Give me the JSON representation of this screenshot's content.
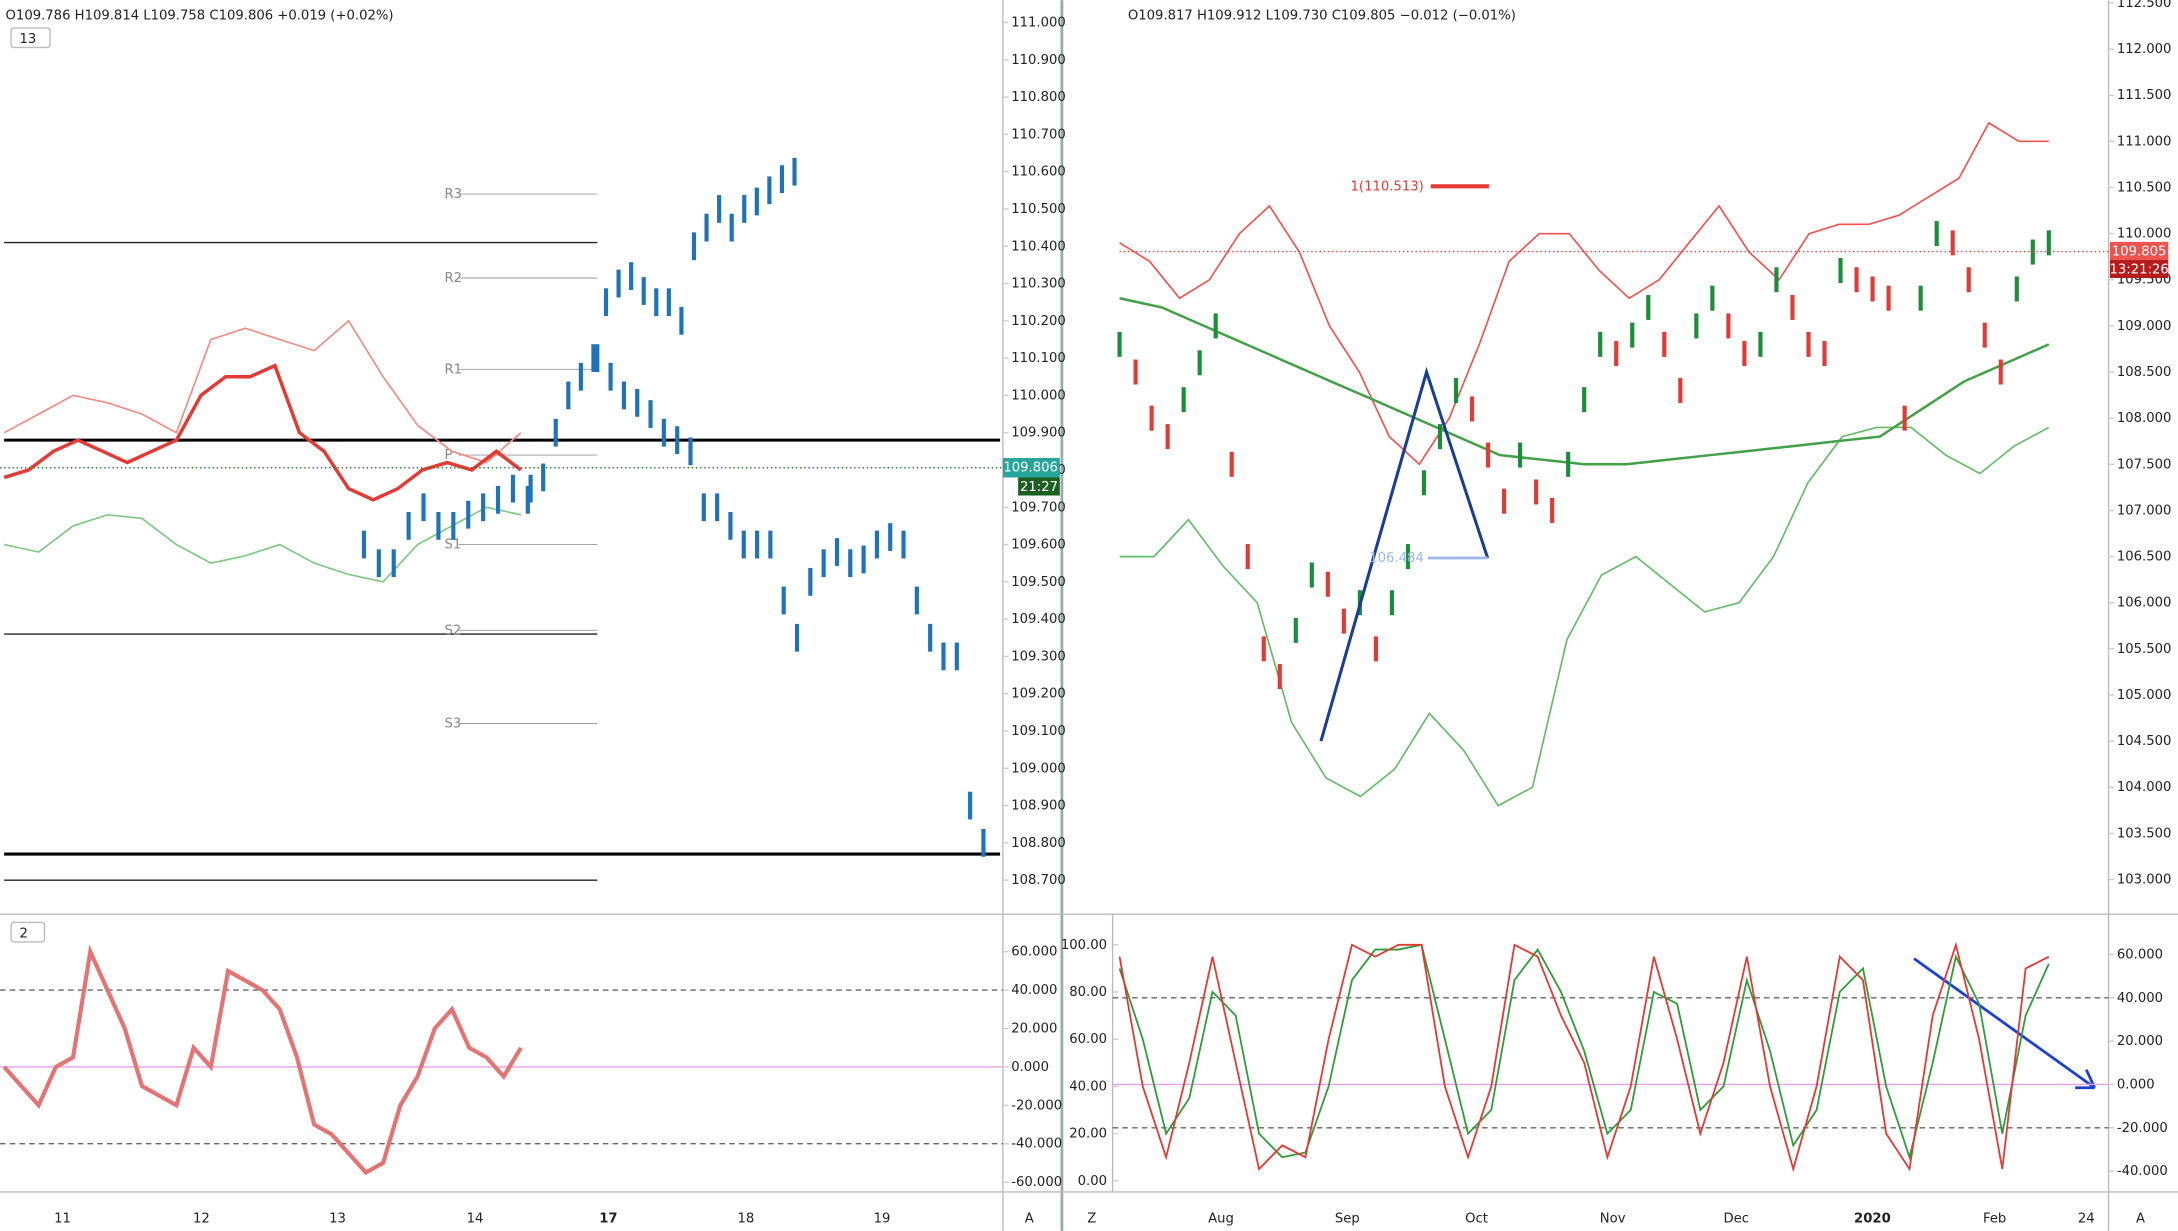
{
  "left_chart": {
    "header": "O109.786 H109.814 L109.758 C109.806 +0.019 (+0.02%)",
    "indicator_count": "13",
    "osc_count": "2",
    "ylim": [
      108.62,
      111.06
    ],
    "yticks": [
      {
        "value": 111.0,
        "label": "111.000"
      },
      {
        "value": 110.9,
        "label": "110.900"
      },
      {
        "value": 110.8,
        "label": "110.800"
      },
      {
        "value": 110.7,
        "label": "110.700"
      },
      {
        "value": 110.6,
        "label": "110.600"
      },
      {
        "value": 110.5,
        "label": "110.500"
      },
      {
        "value": 110.4,
        "label": "110.400"
      },
      {
        "value": 110.3,
        "label": "110.300"
      },
      {
        "value": 110.2,
        "label": "110.200"
      },
      {
        "value": 110.1,
        "label": "110.100"
      },
      {
        "value": 110.0,
        "label": "110.000"
      },
      {
        "value": 109.9,
        "label": "109.900"
      },
      {
        "value": 109.8,
        "label": "109.800"
      },
      {
        "value": 109.7,
        "label": "109.700"
      },
      {
        "value": 109.6,
        "label": "109.600"
      },
      {
        "value": 109.5,
        "label": "109.500"
      },
      {
        "value": 109.4,
        "label": "109.400"
      },
      {
        "value": 109.3,
        "label": "109.300"
      },
      {
        "value": 109.2,
        "label": "109.200"
      },
      {
        "value": 109.1,
        "label": "109.100"
      },
      {
        "value": 109.0,
        "label": "109.000"
      },
      {
        "value": 108.9,
        "label": "108.900"
      },
      {
        "value": 108.8,
        "label": "108.800"
      },
      {
        "value": 108.7,
        "label": "108.700"
      }
    ],
    "last_price": {
      "value": 109.806,
      "label": "109.806"
    },
    "countdown": "21:27",
    "levels": [
      110.41,
      109.36,
      108.7
    ],
    "key_levels": [
      109.88,
      108.77
    ],
    "pivots": [
      {
        "label": "R3",
        "value": 110.54
      },
      {
        "label": "R2",
        "value": 110.315
      },
      {
        "label": "R1",
        "value": 110.07
      },
      {
        "label": "P",
        "value": 109.84
      },
      {
        "label": "S1",
        "value": 109.6
      },
      {
        "label": "S2",
        "value": 109.37
      },
      {
        "label": "S3",
        "value": 109.12
      }
    ],
    "price": [
      109.78,
      109.8,
      109.85,
      109.88,
      109.85,
      109.82,
      109.85,
      109.88,
      110.0,
      110.05,
      110.05,
      110.08,
      109.9,
      109.85,
      109.75,
      109.72,
      109.75,
      109.8,
      109.82,
      109.8,
      109.85,
      109.8
    ],
    "upper_band": [
      109.9,
      109.95,
      110.0,
      109.98,
      109.95,
      109.9,
      110.15,
      110.18,
      110.15,
      110.12,
      110.2,
      110.05,
      109.92,
      109.85,
      109.82,
      109.9
    ],
    "lower_band": [
      109.6,
      109.58,
      109.65,
      109.68,
      109.67,
      109.6,
      109.55,
      109.57,
      109.6,
      109.55,
      109.52,
      109.5,
      109.6,
      109.65,
      109.7,
      109.68
    ],
    "projection_early": [
      109.6,
      109.55,
      109.55,
      109.65,
      109.7,
      109.65,
      109.65,
      109.68,
      109.7,
      109.72,
      109.75,
      109.72
    ],
    "projection_up": [
      109.75,
      109.78,
      109.9,
      110.0,
      110.05,
      110.1,
      110.25,
      110.3,
      110.32,
      110.28,
      110.25,
      110.25,
      110.2,
      110.4,
      110.45,
      110.5,
      110.45,
      110.5,
      110.52,
      110.55,
      110.58,
      110.6
    ],
    "projection_down": [
      110.1,
      110.05,
      110.0,
      109.98,
      109.95,
      109.9,
      109.88,
      109.85,
      109.7,
      109.7,
      109.65,
      109.6,
      109.6,
      109.6,
      109.45,
      109.35,
      109.5,
      109.55,
      109.58,
      109.55,
      109.56,
      109.6,
      109.62,
      109.6,
      109.45,
      109.35,
      109.3,
      109.3,
      108.9,
      108.8
    ],
    "x_labels": [
      "11",
      "12",
      "13",
      "14",
      "17",
      "18",
      "19"
    ],
    "osc": {
      "ylim": [
        -65.1,
        78.1
      ],
      "yticks": [
        {
          "value": 60,
          "label": "60.000"
        },
        {
          "value": 40,
          "label": "40.000"
        },
        {
          "value": 20,
          "label": "20.000"
        },
        {
          "value": 0,
          "label": "0.000"
        },
        {
          "value": -20,
          "label": "-20.000"
        },
        {
          "value": -40,
          "label": "-40.000"
        },
        {
          "value": -60,
          "label": "-60.000"
        }
      ],
      "bands": [
        40,
        0,
        -40
      ],
      "values": [
        0,
        -10,
        -20,
        0,
        5,
        60,
        40,
        20,
        -10,
        -15,
        -20,
        10,
        0,
        50,
        45,
        40,
        30,
        5,
        -30,
        -35,
        -45,
        -55,
        -50,
        -20,
        -5,
        20,
        30,
        10,
        5,
        -5,
        10
      ]
    }
  },
  "right_chart": {
    "header": "O109.817 H109.912 L109.730 C109.805 −0.012 (−0.01%)",
    "ylim": [
      102.67,
      112.53
    ],
    "yticks": [
      {
        "value": 112.5,
        "label": "112.500"
      },
      {
        "value": 112.0,
        "label": "112.000"
      },
      {
        "value": 111.5,
        "label": "111.500"
      },
      {
        "value": 111.0,
        "label": "111.000"
      },
      {
        "value": 110.5,
        "label": "110.500"
      },
      {
        "value": 110.0,
        "label": "110.000"
      },
      {
        "value": 109.5,
        "label": "109.500"
      },
      {
        "value": 109.0,
        "label": "109.000"
      },
      {
        "value": 108.5,
        "label": "108.500"
      },
      {
        "value": 108.0,
        "label": "108.000"
      },
      {
        "value": 107.5,
        "label": "107.500"
      },
      {
        "value": 107.0,
        "label": "107.000"
      },
      {
        "value": 106.5,
        "label": "106.500"
      },
      {
        "value": 106.0,
        "label": "106.000"
      },
      {
        "value": 105.5,
        "label": "105.500"
      },
      {
        "value": 105.0,
        "label": "105.000"
      },
      {
        "value": 104.5,
        "label": "104.500"
      },
      {
        "value": 104.0,
        "label": "104.000"
      },
      {
        "value": 103.5,
        "label": "103.500"
      },
      {
        "value": 103.0,
        "label": "103.000"
      }
    ],
    "last_price": {
      "value": 109.805,
      "label": "109.805"
    },
    "countdown": "13:21:26",
    "target": {
      "label": "1(110.513)",
      "value": 110.513
    },
    "pattern": {
      "points": [
        104.5,
        108.5,
        106.484
      ],
      "label": "106.484"
    },
    "closes": [
      108.8,
      108.5,
      108.0,
      107.8,
      108.2,
      108.6,
      109.0,
      107.5,
      106.5,
      105.5,
      105.2,
      105.7,
      106.3,
      106.2,
      105.8,
      106.0,
      105.5,
      106.0,
      106.5,
      107.3,
      107.8,
      108.3,
      108.1,
      107.6,
      107.1,
      107.6,
      107.2,
      107.0,
      107.5,
      108.2,
      108.8,
      108.7,
      108.9,
      109.2,
      108.8,
      108.3,
      109.0,
      109.3,
      109.0,
      108.7,
      108.8,
      109.5,
      109.2,
      108.8,
      108.7,
      109.6,
      109.5,
      109.4,
      109.3,
      108.0,
      109.3,
      110.0,
      109.9,
      109.5,
      108.9,
      108.5,
      109.4,
      109.8,
      109.9
    ],
    "upper_band": [
      109.9,
      109.7,
      109.3,
      109.5,
      110.0,
      110.3,
      109.8,
      109.0,
      108.5,
      107.8,
      107.5,
      108.0,
      108.8,
      109.7,
      110.0,
      110.0,
      109.6,
      109.3,
      109.5,
      109.9,
      110.3,
      109.8,
      109.5,
      110.0,
      110.1,
      110.1,
      110.2,
      110.4,
      110.6,
      111.2,
      111.0,
      111.0
    ],
    "lower_band": [
      106.5,
      106.5,
      106.9,
      106.4,
      106.0,
      104.7,
      104.1,
      103.9,
      104.2,
      104.8,
      104.4,
      103.8,
      104.0,
      105.6,
      106.3,
      106.5,
      106.2,
      105.9,
      106.0,
      106.5,
      107.3,
      107.8,
      107.9,
      107.9,
      107.6,
      107.4,
      107.7,
      107.9
    ],
    "ma_slow": [
      109.3,
      109.2,
      109.0,
      108.8,
      108.6,
      108.4,
      108.2,
      108.0,
      107.8,
      107.6,
      107.55,
      107.5,
      107.5,
      107.55,
      107.6,
      107.65,
      107.7,
      107.75,
      107.8,
      108.1,
      108.4,
      108.6,
      108.8
    ],
    "x_labels": [
      "Aug",
      "Sep",
      "Oct",
      "Nov",
      "Dec",
      "2020",
      "Feb",
      "24"
    ],
    "osc": {
      "ylim": [
        -4.7,
        111.8
      ],
      "y2lim": [
        -49.6,
        77.3
      ],
      "yticks": [
        {
          "value": 100,
          "label": "100.00"
        },
        {
          "value": 80,
          "label": "80.00"
        },
        {
          "value": 60,
          "label": "60.00"
        },
        {
          "value": 40,
          "label": "40.00"
        },
        {
          "value": 20,
          "label": "20.00"
        },
        {
          "value": 0,
          "label": "0.00"
        }
      ],
      "y2ticks": [
        {
          "value": 60,
          "label": "60.000"
        },
        {
          "value": 40,
          "label": "40.000"
        },
        {
          "value": 20,
          "label": "20.000"
        },
        {
          "value": 0,
          "label": "0.000"
        },
        {
          "value": -20,
          "label": "-20.000"
        },
        {
          "value": -40,
          "label": "-40.000"
        }
      ],
      "bands": [
        40,
        0,
        -20
      ],
      "stoch_k": [
        95,
        40,
        10,
        50,
        95,
        50,
        5,
        15,
        10,
        60,
        100,
        95,
        100,
        100,
        40,
        10,
        40,
        100,
        95,
        70,
        50,
        10,
        40,
        95,
        60,
        20,
        50,
        95,
        40,
        5,
        40,
        95,
        85,
        20,
        5,
        70,
        100,
        60,
        5,
        90,
        95
      ],
      "stoch_d": [
        90,
        60,
        20,
        35,
        80,
        70,
        20,
        10,
        12,
        40,
        85,
        98,
        98,
        100,
        60,
        20,
        30,
        85,
        98,
        80,
        55,
        20,
        30,
        80,
        75,
        30,
        40,
        85,
        55,
        15,
        30,
        80,
        90,
        40,
        10,
        50,
        95,
        75,
        20,
        70,
        92
      ]
    }
  }
}
